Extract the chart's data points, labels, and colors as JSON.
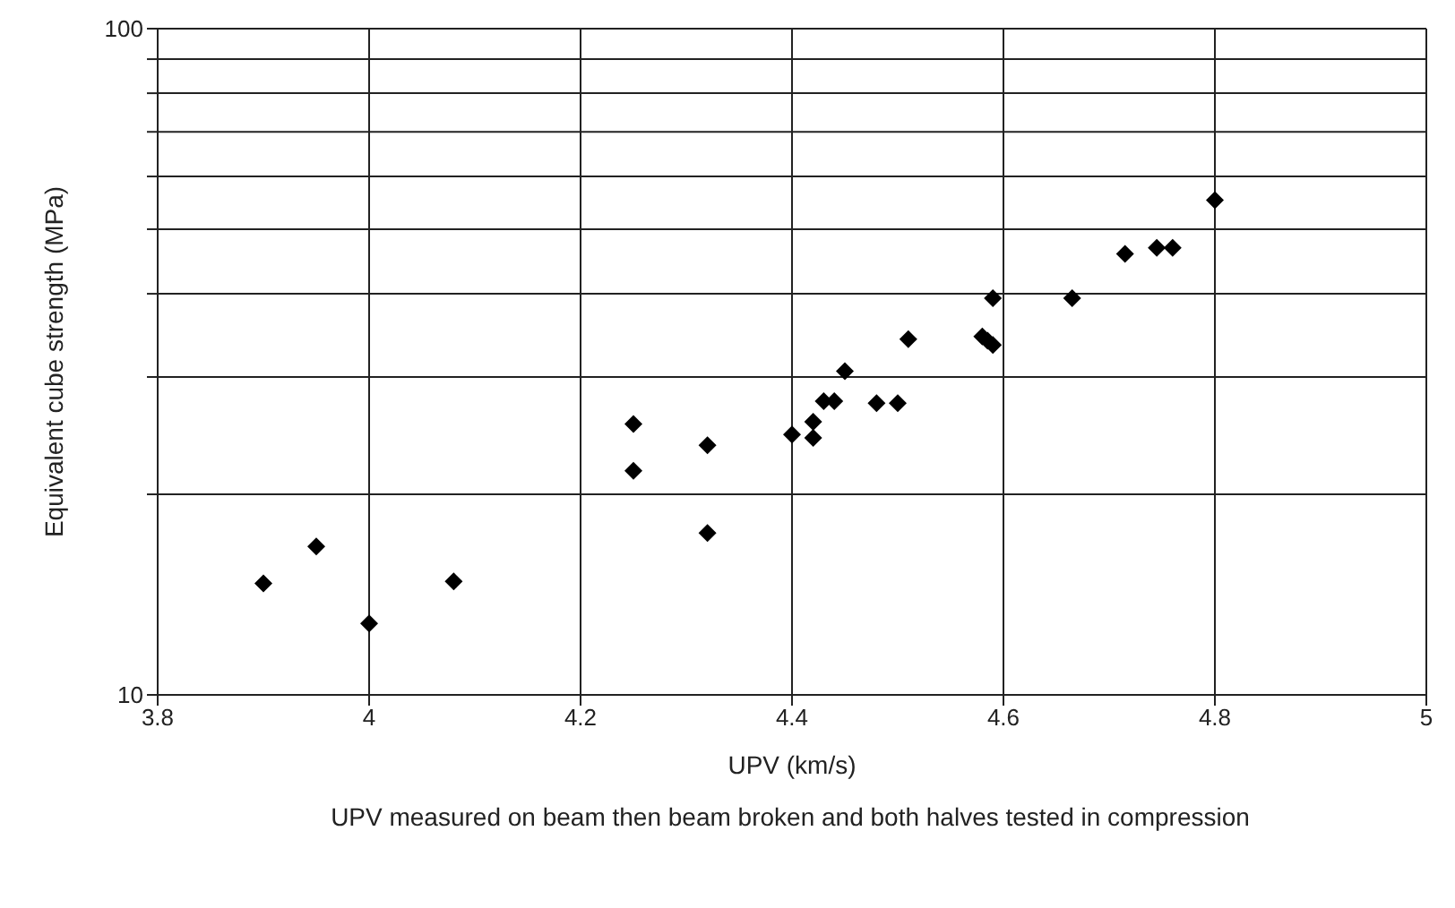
{
  "chart_data": {
    "type": "scatter",
    "xlabel": "UPV (km/s)",
    "ylabel": "Equivalent cube strength (MPa)",
    "annotations": [
      "UPV measured on beam then beam broken and both halves tested in compression"
    ],
    "x": [
      3.9,
      3.95,
      4.0,
      4.08,
      4.25,
      4.25,
      4.32,
      4.32,
      4.4,
      4.42,
      4.42,
      4.43,
      4.44,
      4.45,
      4.48,
      4.5,
      4.51,
      4.58,
      4.585,
      4.59,
      4.59,
      4.665,
      4.715,
      4.745,
      4.76,
      4.8
    ],
    "series": [
      {
        "color": "#000000",
        "values": [
          14.7,
          16.7,
          12.8,
          14.8,
          25.5,
          21.7,
          23.7,
          17.5,
          24.6,
          25.7,
          24.3,
          27.6,
          27.6,
          30.6,
          27.4,
          27.4,
          34.2,
          34.5,
          34,
          33.5,
          39.4,
          39.4,
          45.9,
          46.9,
          46.9,
          55.3
        ]
      }
    ],
    "xlim": [
      3.8,
      5
    ],
    "xticks": [
      3.8,
      4,
      4.2,
      4.4,
      4.6,
      4.8,
      5
    ],
    "ylim": [
      10,
      100
    ],
    "yticks": [
      10,
      {
        "value": 20,
        "label": null
      },
      {
        "value": 30,
        "label": null
      },
      {
        "value": 40,
        "label": null
      },
      {
        "value": 50,
        "label": null
      },
      {
        "value": 60,
        "label": null
      },
      {
        "value": 70,
        "label": null
      },
      {
        "value": 80,
        "label": null
      },
      {
        "value": 90,
        "label": null
      },
      100
    ],
    "log": "y",
    "grid": true,
    "marker": "diamond"
  }
}
